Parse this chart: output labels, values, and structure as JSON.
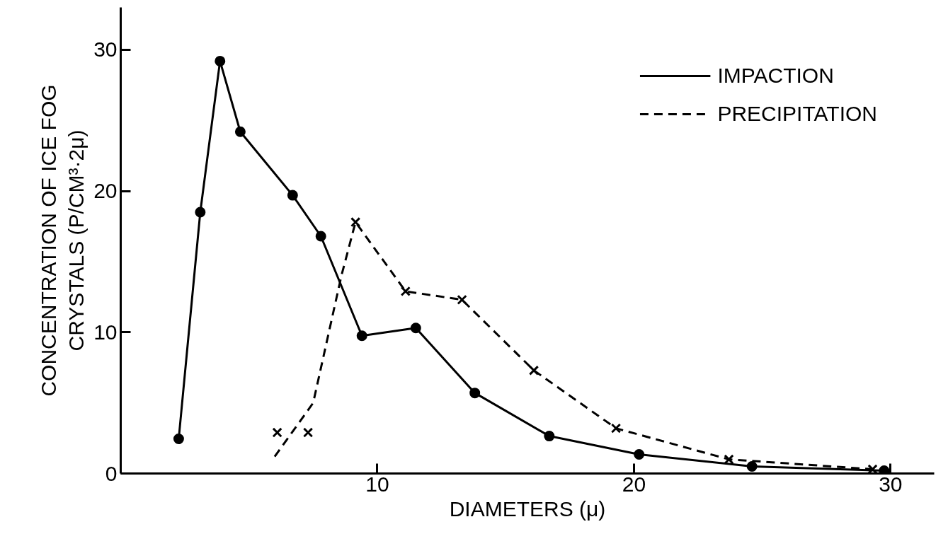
{
  "chart_data": {
    "type": "line",
    "xlabel": "DIAMETERS (μ)",
    "ylabel": "CONCENTRATION OF ICE FOG\nCRYSTALS (P/CM³·2μ)",
    "xlim": [
      0,
      31.7
    ],
    "ylim": [
      0,
      33
    ],
    "xticks": [
      10,
      20,
      30
    ],
    "yticks": [
      0,
      10,
      20,
      30
    ],
    "grid": false,
    "legend": "top right",
    "series": [
      {
        "name": "IMPACTION",
        "color": "#000000",
        "line_style": "solid",
        "marker": "circle",
        "x": [
          2.26,
          3.1,
          3.87,
          4.66,
          6.7,
          7.8,
          9.4,
          11.5,
          13.8,
          16.7,
          20.2,
          24.6,
          29.75
        ],
        "values": [
          2.45,
          18.5,
          29.2,
          24.2,
          19.7,
          16.8,
          9.75,
          10.3,
          5.7,
          2.65,
          1.35,
          0.5,
          0.2
        ]
      },
      {
        "name": "PRECIPITATION",
        "color": "#000000",
        "line_style": "dashed",
        "marker": "none",
        "x": [
          6.0,
          7.5,
          8.6,
          9.15,
          11.1,
          13.3,
          16.1,
          19.3,
          23.7,
          29.3
        ],
        "values": [
          1.2,
          5.0,
          14.0,
          17.8,
          12.9,
          12.3,
          7.3,
          3.2,
          1.0,
          0.3
        ]
      },
      {
        "type": "scatter",
        "color": "#000000",
        "marker": "cross",
        "x": [
          6.1,
          7.3,
          9.15,
          11.1,
          13.3,
          16.1,
          19.3,
          23.7,
          29.3
        ],
        "values": [
          2.9,
          2.9,
          17.8,
          12.9,
          12.3,
          7.3,
          3.2,
          1.0,
          0.3
        ]
      }
    ]
  }
}
